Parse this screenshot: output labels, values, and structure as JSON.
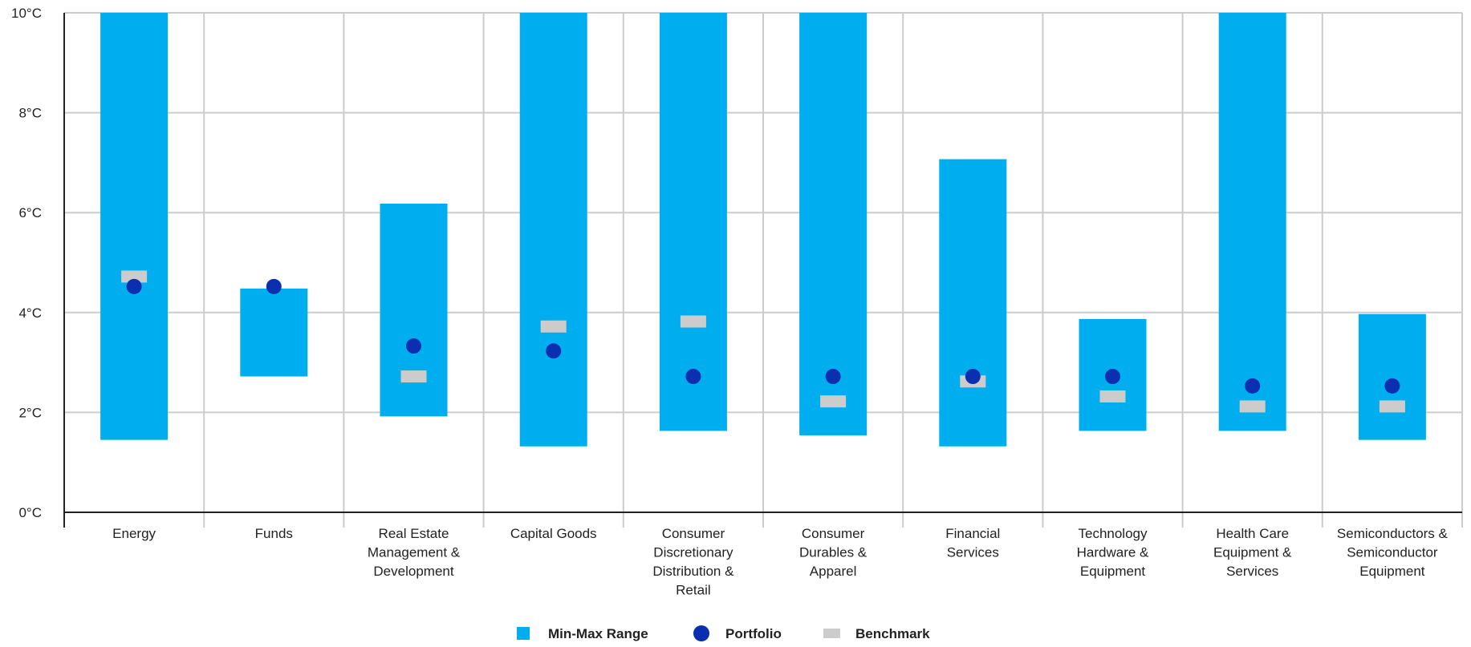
{
  "chart_data": {
    "type": "range-bar",
    "title": "",
    "xlabel": "",
    "ylabel": "",
    "y_unit": "°C",
    "ylim": [
      0,
      10
    ],
    "y_ticks": [
      0,
      2,
      4,
      6,
      8,
      10
    ],
    "y_tick_labels": [
      "0°C",
      "2°C",
      "4°C",
      "6°C",
      "8°C",
      "10°C"
    ],
    "grid": true,
    "legend_position": "bottom-center",
    "categories": [
      "Energy",
      "Funds",
      "Real Estate Management & Development",
      "Capital Goods",
      "Consumer Discretionary Distribution & Retail",
      "Consumer Durables & Apparel",
      "Financial Services",
      "Technology Hardware & Equipment",
      "Health Care Equipment & Services",
      "Semiconductors & Semiconductor Equipment"
    ],
    "category_label_lines": [
      [
        "Energy"
      ],
      [
        "Funds"
      ],
      [
        "Real Estate",
        "Management &",
        "Development"
      ],
      [
        "Capital Goods"
      ],
      [
        "Consumer",
        "Discretionary",
        "Distribution &",
        "Retail"
      ],
      [
        "Consumer",
        "Durables &",
        "Apparel"
      ],
      [
        "Financial",
        "Services"
      ],
      [
        "Technology",
        "Hardware &",
        "Equipment"
      ],
      [
        "Health Care",
        "Equipment &",
        "Services"
      ],
      [
        "Semiconductors &",
        "Semiconductor",
        "Equipment"
      ]
    ],
    "series": [
      {
        "name": "Min-Max Range",
        "kind": "range",
        "color": "#00aeef",
        "min": [
          1.45,
          2.72,
          1.92,
          1.32,
          1.63,
          1.54,
          1.32,
          1.63,
          1.63,
          1.45
        ],
        "max": [
          10,
          4.48,
          6.18,
          10,
          10,
          10,
          7.07,
          3.87,
          10,
          3.97
        ]
      },
      {
        "name": "Portfolio",
        "kind": "point",
        "color": "#0b2fae",
        "values": [
          4.52,
          4.52,
          3.33,
          3.23,
          2.72,
          2.72,
          2.72,
          2.72,
          2.53,
          2.53
        ]
      },
      {
        "name": "Benchmark",
        "kind": "marker",
        "color": "#cccccc",
        "values": [
          4.72,
          null,
          2.72,
          3.72,
          3.82,
          2.22,
          2.62,
          2.32,
          2.12,
          2.12
        ]
      }
    ]
  }
}
